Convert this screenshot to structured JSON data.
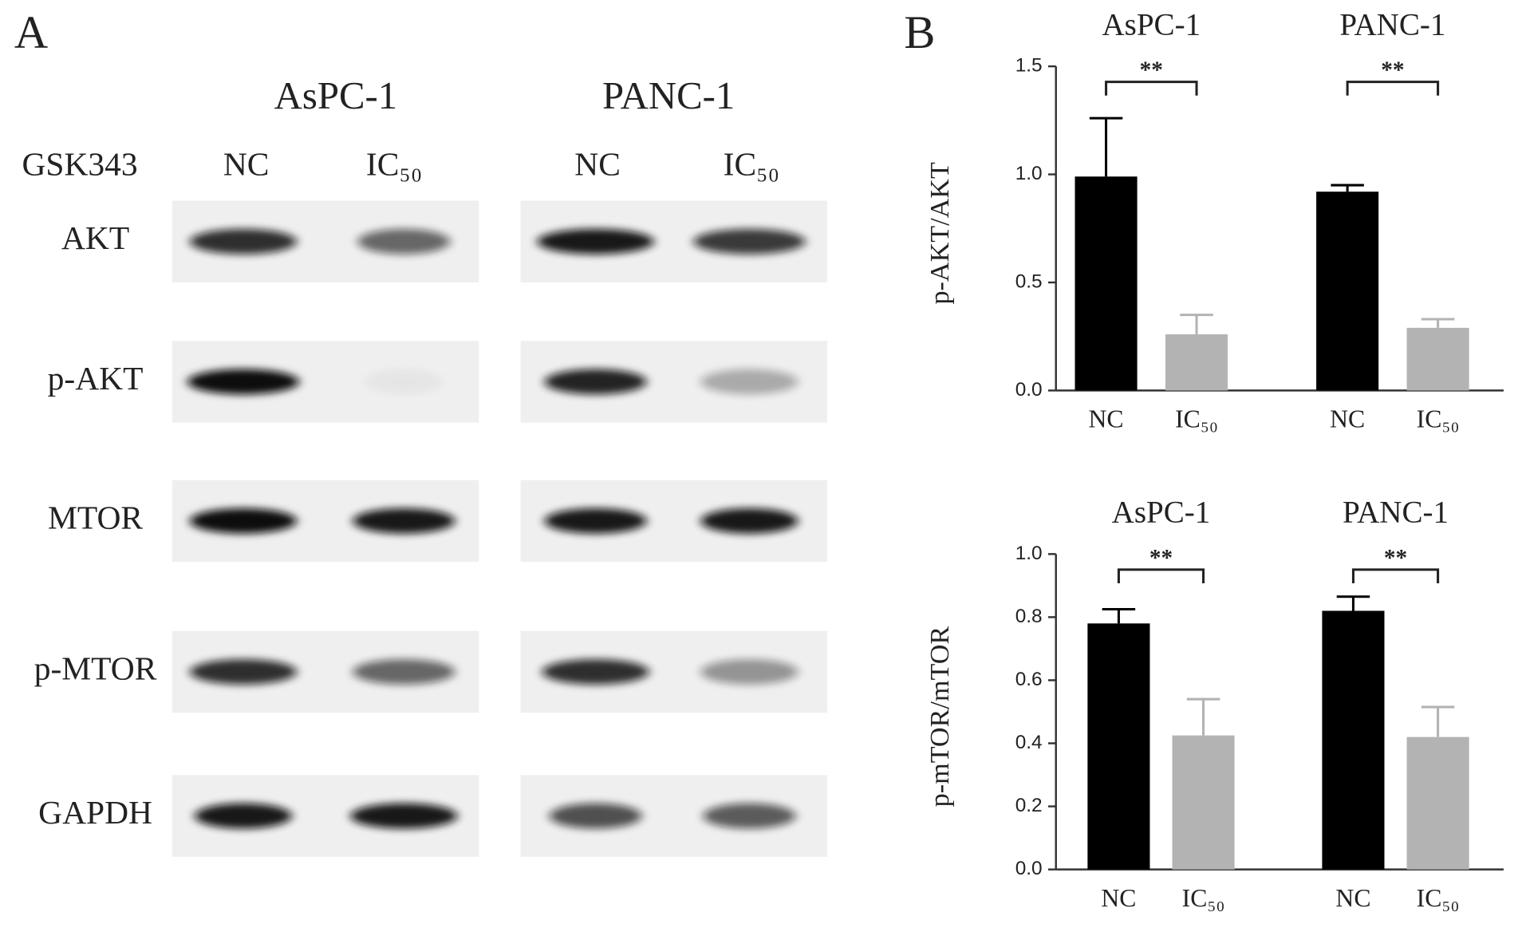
{
  "panel_a": {
    "label": "A",
    "cell_lines": [
      "AsPC-1",
      "PANC-1"
    ],
    "treatment_label": "GSK343",
    "conditions": [
      "NC",
      "IC₅₀",
      "NC",
      "IC₅₀"
    ],
    "proteins": [
      "AKT",
      "p-AKT",
      "MTOR",
      "p-MTOR",
      "GAPDH"
    ]
  },
  "panel_b": {
    "label": "B"
  },
  "chart_data": [
    {
      "type": "bar",
      "y_label": "p-AKT/AKT",
      "groups": [
        "AsPC-1",
        "PANC-1"
      ],
      "series": [
        {
          "name": "NC",
          "color": "#000000",
          "values": [
            0.99,
            0.92
          ],
          "errors": [
            0.27,
            0.03
          ]
        },
        {
          "name": "IC₅₀",
          "color": "#b3b3b3",
          "values": [
            0.26,
            0.29
          ],
          "errors": [
            0.09,
            0.04
          ]
        }
      ],
      "annotations": [
        "**",
        "**"
      ],
      "ylim": [
        0,
        1.5
      ],
      "yticks": [
        {
          "value": 0,
          "label": "0.0"
        },
        0.5,
        {
          "value": 1,
          "label": "1.0"
        },
        1.5
      ]
    },
    {
      "type": "bar",
      "y_label": "p-mTOR/mTOR",
      "groups": [
        "AsPC-1",
        "PANC-1"
      ],
      "series": [
        {
          "name": "NC",
          "color": "#000000",
          "values": [
            0.78,
            0.82
          ],
          "errors": [
            0.045,
            0.045
          ]
        },
        {
          "name": "IC₅₀",
          "color": "#b3b3b3",
          "values": [
            0.425,
            0.42
          ],
          "errors": [
            0.115,
            0.095
          ]
        }
      ],
      "annotations": [
        "**",
        "**"
      ],
      "ylim": [
        0,
        1
      ],
      "yticks": [
        {
          "value": 0,
          "label": "0.0"
        },
        0.2,
        0.4,
        0.6,
        0.8,
        {
          "value": 1,
          "label": "1.0"
        }
      ]
    }
  ]
}
